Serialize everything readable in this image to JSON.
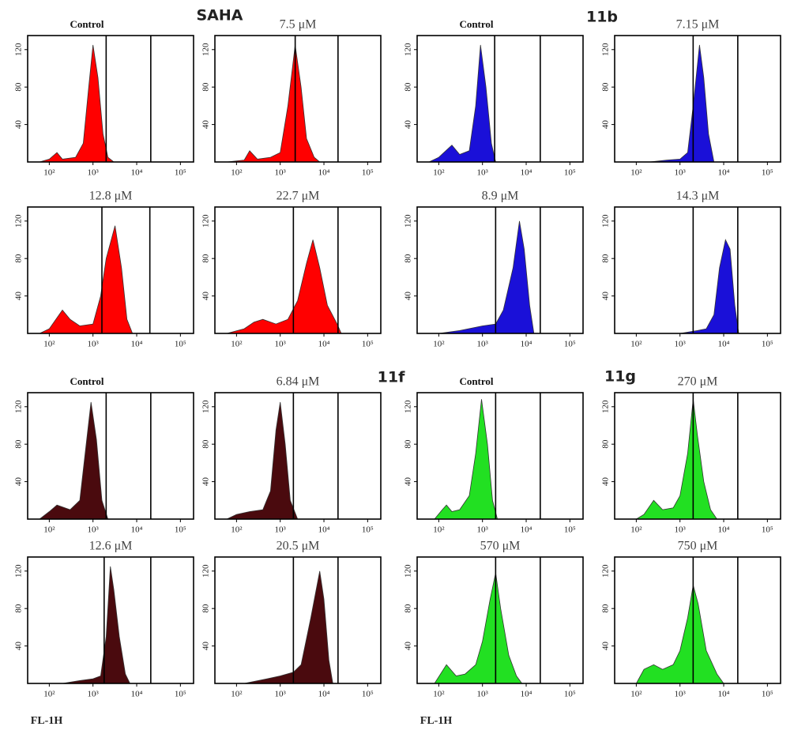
{
  "chart_data": [
    {
      "type": "area",
      "title": "Control",
      "annotation": "SAHA",
      "color": "#ff0000",
      "x": [
        60,
        100,
        150,
        200,
        400,
        600,
        800,
        1000,
        1300,
        1700,
        2200,
        3000
      ],
      "values": [
        0,
        3,
        10,
        3,
        5,
        20,
        80,
        125,
        90,
        30,
        5,
        0
      ],
      "gates": [
        2000,
        21000
      ],
      "xscale": "log",
      "xlim": [
        32,
        200000
      ],
      "ylim": [
        0,
        135
      ],
      "xticks": [
        {
          "value": 100,
          "label": "10²"
        },
        {
          "value": 1000,
          "label": "10³"
        },
        {
          "value": 10000,
          "label": "10⁴"
        },
        {
          "value": 100000,
          "label": "10⁵"
        }
      ],
      "yticks": [
        40,
        80,
        120
      ]
    },
    {
      "type": "area",
      "title": "7.5 μM",
      "color": "#ff0000",
      "x": [
        60,
        150,
        200,
        300,
        600,
        1000,
        1500,
        2200,
        3000,
        4000,
        6000,
        8000
      ],
      "values": [
        0,
        2,
        12,
        3,
        5,
        10,
        60,
        125,
        80,
        25,
        5,
        0
      ],
      "gates": [
        2200,
        21000
      ],
      "xscale": "log",
      "xlim": [
        32,
        200000
      ],
      "ylim": [
        0,
        135
      ],
      "xticks": [
        {
          "value": 100,
          "label": "10²"
        },
        {
          "value": 1000,
          "label": "10³"
        },
        {
          "value": 10000,
          "label": "10⁴"
        },
        {
          "value": 100000,
          "label": "10⁵"
        }
      ],
      "yticks": [
        40,
        80,
        120
      ]
    },
    {
      "type": "area",
      "title": "12.8 μM",
      "color": "#ff0000",
      "x": [
        60,
        100,
        200,
        300,
        500,
        1000,
        1500,
        2000,
        3200,
        4500,
        6000,
        8000
      ],
      "values": [
        0,
        5,
        25,
        15,
        8,
        10,
        40,
        80,
        115,
        70,
        15,
        0
      ],
      "gates": [
        1600,
        20000
      ],
      "xscale": "log",
      "xlim": [
        32,
        200000
      ],
      "ylim": [
        0,
        135
      ],
      "xticks": [
        {
          "value": 100,
          "label": "10²"
        },
        {
          "value": 1000,
          "label": "10³"
        },
        {
          "value": 10000,
          "label": "10⁴"
        },
        {
          "value": 100000,
          "label": "10⁵"
        }
      ],
      "yticks": [
        40,
        80,
        120
      ]
    },
    {
      "type": "area",
      "title": "22.7 μM",
      "color": "#ff0000",
      "x": [
        60,
        150,
        250,
        400,
        800,
        1500,
        2500,
        4000,
        5600,
        8000,
        12000,
        20000,
        25000
      ],
      "values": [
        0,
        5,
        12,
        15,
        10,
        15,
        35,
        75,
        100,
        70,
        30,
        10,
        0
      ],
      "gates": [
        2000,
        21000
      ],
      "xscale": "log",
      "xlim": [
        32,
        200000
      ],
      "ylim": [
        0,
        135
      ],
      "xticks": [
        {
          "value": 100,
          "label": "10²"
        },
        {
          "value": 1000,
          "label": "10³"
        },
        {
          "value": 10000,
          "label": "10⁴"
        },
        {
          "value": 100000,
          "label": "10⁵"
        }
      ],
      "yticks": [
        40,
        80,
        120
      ]
    },
    {
      "type": "area",
      "title": "Control",
      "annotation": "11b",
      "color": "#1a10d8",
      "x": [
        60,
        100,
        200,
        300,
        500,
        700,
        900,
        1200,
        1600,
        2000
      ],
      "values": [
        0,
        5,
        18,
        8,
        12,
        60,
        125,
        80,
        20,
        0
      ],
      "gates": [
        1900,
        21000
      ],
      "xscale": "log",
      "xlim": [
        32,
        200000
      ],
      "ylim": [
        0,
        135
      ],
      "xticks": [
        {
          "value": 100,
          "label": "10²"
        },
        {
          "value": 1000,
          "label": "10³"
        },
        {
          "value": 10000,
          "label": "10⁴"
        },
        {
          "value": 100000,
          "label": "10⁵"
        }
      ],
      "yticks": [
        40,
        80,
        120
      ]
    },
    {
      "type": "area",
      "title": "7.15 μM",
      "color": "#1a10d8",
      "x": [
        200,
        500,
        1000,
        1500,
        2000,
        2800,
        3500,
        4500,
        6000
      ],
      "values": [
        0,
        2,
        3,
        10,
        60,
        125,
        90,
        30,
        0
      ],
      "gates": [
        2000,
        21000
      ],
      "xscale": "log",
      "xlim": [
        32,
        200000
      ],
      "ylim": [
        0,
        135
      ],
      "xticks": [
        {
          "value": 100,
          "label": "10²"
        },
        {
          "value": 1000,
          "label": "10³"
        },
        {
          "value": 10000,
          "label": "10⁴"
        },
        {
          "value": 100000,
          "label": "10⁵"
        }
      ],
      "yticks": [
        40,
        80,
        120
      ]
    },
    {
      "type": "area",
      "title": "8.9 μM",
      "color": "#1a10d8",
      "x": [
        100,
        300,
        1000,
        2000,
        3000,
        5000,
        7000,
        9000,
        12000,
        15000
      ],
      "values": [
        0,
        3,
        8,
        10,
        25,
        70,
        120,
        90,
        30,
        0
      ],
      "gates": [
        2000,
        21000
      ],
      "xscale": "log",
      "xlim": [
        32,
        200000
      ],
      "ylim": [
        0,
        135
      ],
      "xticks": [
        {
          "value": 100,
          "label": "10²"
        },
        {
          "value": 1000,
          "label": "10³"
        },
        {
          "value": 10000,
          "label": "10⁴"
        },
        {
          "value": 100000,
          "label": "10⁵"
        }
      ],
      "yticks": [
        40,
        80,
        120
      ]
    },
    {
      "type": "area",
      "title": "14.3 μM",
      "color": "#1a10d8",
      "x": [
        1000,
        2500,
        4000,
        6000,
        8000,
        11000,
        14000,
        18000,
        22000
      ],
      "values": [
        0,
        3,
        5,
        20,
        70,
        100,
        90,
        30,
        0
      ],
      "gates": [
        2000,
        21000
      ],
      "xscale": "log",
      "xlim": [
        32,
        200000
      ],
      "ylim": [
        0,
        135
      ],
      "xticks": [
        {
          "value": 100,
          "label": "10²"
        },
        {
          "value": 1000,
          "label": "10³"
        },
        {
          "value": 10000,
          "label": "10⁴"
        },
        {
          "value": 100000,
          "label": "10⁵"
        }
      ],
      "yticks": [
        40,
        80,
        120
      ]
    },
    {
      "type": "area",
      "title": "Control",
      "annotation": "11f",
      "color": "#4a0a0e",
      "x": [
        60,
        100,
        150,
        300,
        500,
        700,
        900,
        1200,
        1600,
        2200
      ],
      "values": [
        0,
        8,
        15,
        10,
        20,
        80,
        125,
        85,
        20,
        0
      ],
      "gates": [
        2000,
        21000
      ],
      "xscale": "log",
      "xlim": [
        32,
        200000
      ],
      "ylim": [
        0,
        135
      ],
      "xticks": [
        {
          "value": 100,
          "label": "10²"
        },
        {
          "value": 1000,
          "label": "10³"
        },
        {
          "value": 10000,
          "label": "10⁴"
        },
        {
          "value": 100000,
          "label": "10⁵"
        }
      ],
      "yticks": [
        40,
        80,
        120
      ]
    },
    {
      "type": "area",
      "title": "6.84 μM",
      "color": "#4a0a0e",
      "x": [
        60,
        100,
        200,
        400,
        600,
        800,
        1000,
        1300,
        1700,
        2500
      ],
      "values": [
        0,
        5,
        8,
        10,
        30,
        95,
        125,
        80,
        20,
        0
      ],
      "gates": [
        2000,
        21000
      ],
      "xscale": "log",
      "xlim": [
        32,
        200000
      ],
      "ylim": [
        0,
        135
      ],
      "xticks": [
        {
          "value": 100,
          "label": "10²"
        },
        {
          "value": 1000,
          "label": "10³"
        },
        {
          "value": 10000,
          "label": "10⁴"
        },
        {
          "value": 100000,
          "label": "10⁵"
        }
      ],
      "yticks": [
        40,
        80,
        120
      ]
    },
    {
      "type": "area",
      "title": "12.6 μM",
      "xlabel": "FL-1H",
      "color": "#4a0a0e",
      "x": [
        200,
        500,
        1000,
        1500,
        2000,
        2500,
        3000,
        4000,
        5500,
        7000
      ],
      "values": [
        0,
        3,
        5,
        8,
        50,
        125,
        100,
        50,
        10,
        0
      ],
      "gates": [
        1800,
        21000
      ],
      "xscale": "log",
      "xlim": [
        32,
        200000
      ],
      "ylim": [
        0,
        135
      ],
      "xticks": [
        {
          "value": 100,
          "label": "10²"
        },
        {
          "value": 1000,
          "label": "10³"
        },
        {
          "value": 10000,
          "label": "10⁴"
        },
        {
          "value": 100000,
          "label": "10⁵"
        }
      ],
      "yticks": [
        40,
        80,
        120
      ]
    },
    {
      "type": "area",
      "title": "20.5 μM",
      "color": "#4a0a0e",
      "x": [
        150,
        500,
        1000,
        2000,
        3000,
        5000,
        8000,
        10000,
        13000,
        16000
      ],
      "values": [
        0,
        5,
        8,
        12,
        20,
        70,
        120,
        90,
        25,
        0
      ],
      "gates": [
        2000,
        21000
      ],
      "xscale": "log",
      "xlim": [
        32,
        200000
      ],
      "ylim": [
        0,
        135
      ],
      "xticks": [
        {
          "value": 100,
          "label": "10²"
        },
        {
          "value": 1000,
          "label": "10³"
        },
        {
          "value": 10000,
          "label": "10⁴"
        },
        {
          "value": 100000,
          "label": "10⁵"
        }
      ],
      "yticks": [
        40,
        80,
        120
      ]
    },
    {
      "type": "area",
      "title": "Control",
      "annotation": "11g",
      "color": "#22e022",
      "x": [
        80,
        120,
        150,
        200,
        300,
        500,
        700,
        950,
        1300,
        1700,
        2200
      ],
      "values": [
        0,
        10,
        15,
        8,
        10,
        25,
        70,
        128,
        80,
        20,
        0
      ],
      "gates": [
        2000,
        21000
      ],
      "xscale": "log",
      "xlim": [
        32,
        200000
      ],
      "ylim": [
        0,
        135
      ],
      "xticks": [
        {
          "value": 100,
          "label": "10²"
        },
        {
          "value": 1000,
          "label": "10³"
        },
        {
          "value": 10000,
          "label": "10⁴"
        },
        {
          "value": 100000,
          "label": "10⁵"
        }
      ],
      "yticks": [
        40,
        80,
        120
      ]
    },
    {
      "type": "area",
      "title": "270 μM",
      "color": "#22e022",
      "x": [
        100,
        150,
        250,
        400,
        700,
        1000,
        1500,
        2000,
        2500,
        3500,
        5000,
        7000
      ],
      "values": [
        0,
        5,
        20,
        10,
        12,
        25,
        70,
        128,
        90,
        40,
        10,
        0
      ],
      "gates": [
        2000,
        21000
      ],
      "xscale": "log",
      "xlim": [
        32,
        200000
      ],
      "ylim": [
        0,
        135
      ],
      "xticks": [
        {
          "value": 100,
          "label": "10²"
        },
        {
          "value": 1000,
          "label": "10³"
        },
        {
          "value": 10000,
          "label": "10⁴"
        },
        {
          "value": 100000,
          "label": "10⁵"
        }
      ],
      "yticks": [
        40,
        80,
        120
      ]
    },
    {
      "type": "area",
      "title": "570 μM",
      "xlabel": "FL-1H",
      "color": "#22e022",
      "x": [
        80,
        150,
        250,
        400,
        700,
        1000,
        1500,
        2000,
        2600,
        4000,
        6000,
        8000
      ],
      "values": [
        0,
        20,
        8,
        10,
        20,
        45,
        90,
        118,
        80,
        30,
        8,
        0
      ],
      "gates": [
        2000,
        21000
      ],
      "xscale": "log",
      "xlim": [
        32,
        200000
      ],
      "ylim": [
        0,
        135
      ],
      "xticks": [
        {
          "value": 100,
          "label": "10²"
        },
        {
          "value": 1000,
          "label": "10³"
        },
        {
          "value": 10000,
          "label": "10⁴"
        },
        {
          "value": 100000,
          "label": "10⁵"
        }
      ],
      "yticks": [
        40,
        80,
        120
      ]
    },
    {
      "type": "area",
      "title": "750 μM",
      "color": "#22e022",
      "x": [
        100,
        150,
        250,
        400,
        700,
        1000,
        1500,
        2000,
        2600,
        4000,
        7000,
        10000
      ],
      "values": [
        0,
        15,
        20,
        15,
        20,
        35,
        70,
        105,
        85,
        35,
        10,
        0
      ],
      "gates": [
        2000,
        21000
      ],
      "xscale": "log",
      "xlim": [
        32,
        200000
      ],
      "ylim": [
        0,
        135
      ],
      "xticks": [
        {
          "value": 100,
          "label": "10²"
        },
        {
          "value": 1000,
          "label": "10³"
        },
        {
          "value": 10000,
          "label": "10⁴"
        },
        {
          "value": 100000,
          "label": "10⁵"
        }
      ],
      "yticks": [
        40,
        80,
        120
      ]
    }
  ]
}
